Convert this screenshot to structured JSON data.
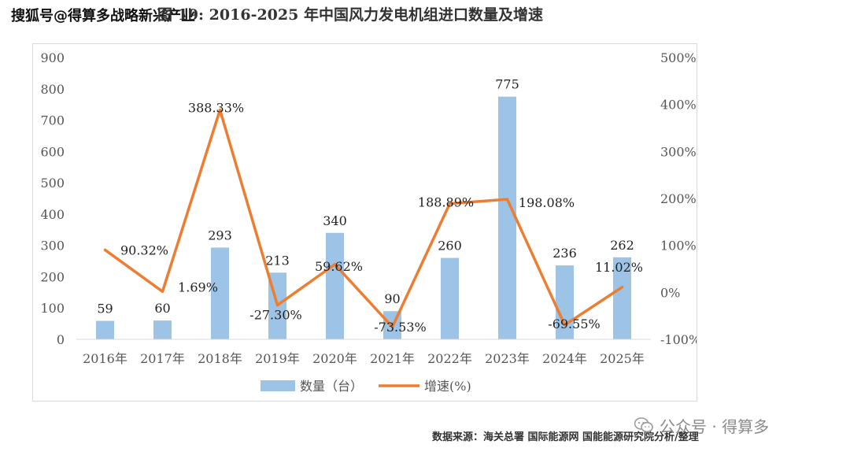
{
  "title": "图 19: 2016-2025 年中国风力发电机组进口数量及增速",
  "watermark": "搜狐号@得算多战略新兴产业",
  "source": "数据来源：海关总署 国际能源网 国能能源研究院分析/整理",
  "wechat_label": "公众号 · 得算多",
  "colors": {
    "bar": "#9dc3e6",
    "line": "#ed7d31",
    "axis_text": "#555555",
    "label_text": "#222222"
  },
  "icons": {
    "wechat": "wechat-icon"
  },
  "chart_data": {
    "type": "bar",
    "categories": [
      "2016年",
      "2017年",
      "2018年",
      "2019年",
      "2020年",
      "2021年",
      "2022年",
      "2023年",
      "2024年",
      "2025年"
    ],
    "series": [
      {
        "name": "数量（台）",
        "type": "bar",
        "axis": "left",
        "values": [
          59,
          60,
          293,
          213,
          340,
          90,
          260,
          775,
          236,
          262
        ],
        "labels": [
          "59",
          "60",
          "293",
          "213",
          "340",
          "90",
          "260",
          "775",
          "236",
          "262"
        ]
      },
      {
        "name": "增速(%)",
        "type": "line",
        "axis": "right",
        "values": [
          90.32,
          1.69,
          388.33,
          -27.3,
          59.62,
          -73.53,
          188.89,
          198.08,
          -69.55,
          11.02
        ],
        "labels": [
          "90.32%",
          "1.69%",
          "388.33%",
          "-27.30%",
          "59.62%",
          "-73.53%",
          "188.89%",
          "198.08%",
          "-69.55%",
          "11.02%"
        ]
      }
    ],
    "y_left": {
      "min": 0,
      "max": 900,
      "ticks": [
        "0",
        "100",
        "200",
        "300",
        "400",
        "500",
        "600",
        "700",
        "800",
        "900"
      ]
    },
    "y_right": {
      "min": -100,
      "max": 500,
      "ticks": [
        "-100%",
        "0%",
        "100%",
        "200%",
        "300%",
        "400%",
        "500%"
      ]
    },
    "grid": false,
    "legend_position": "bottom"
  }
}
